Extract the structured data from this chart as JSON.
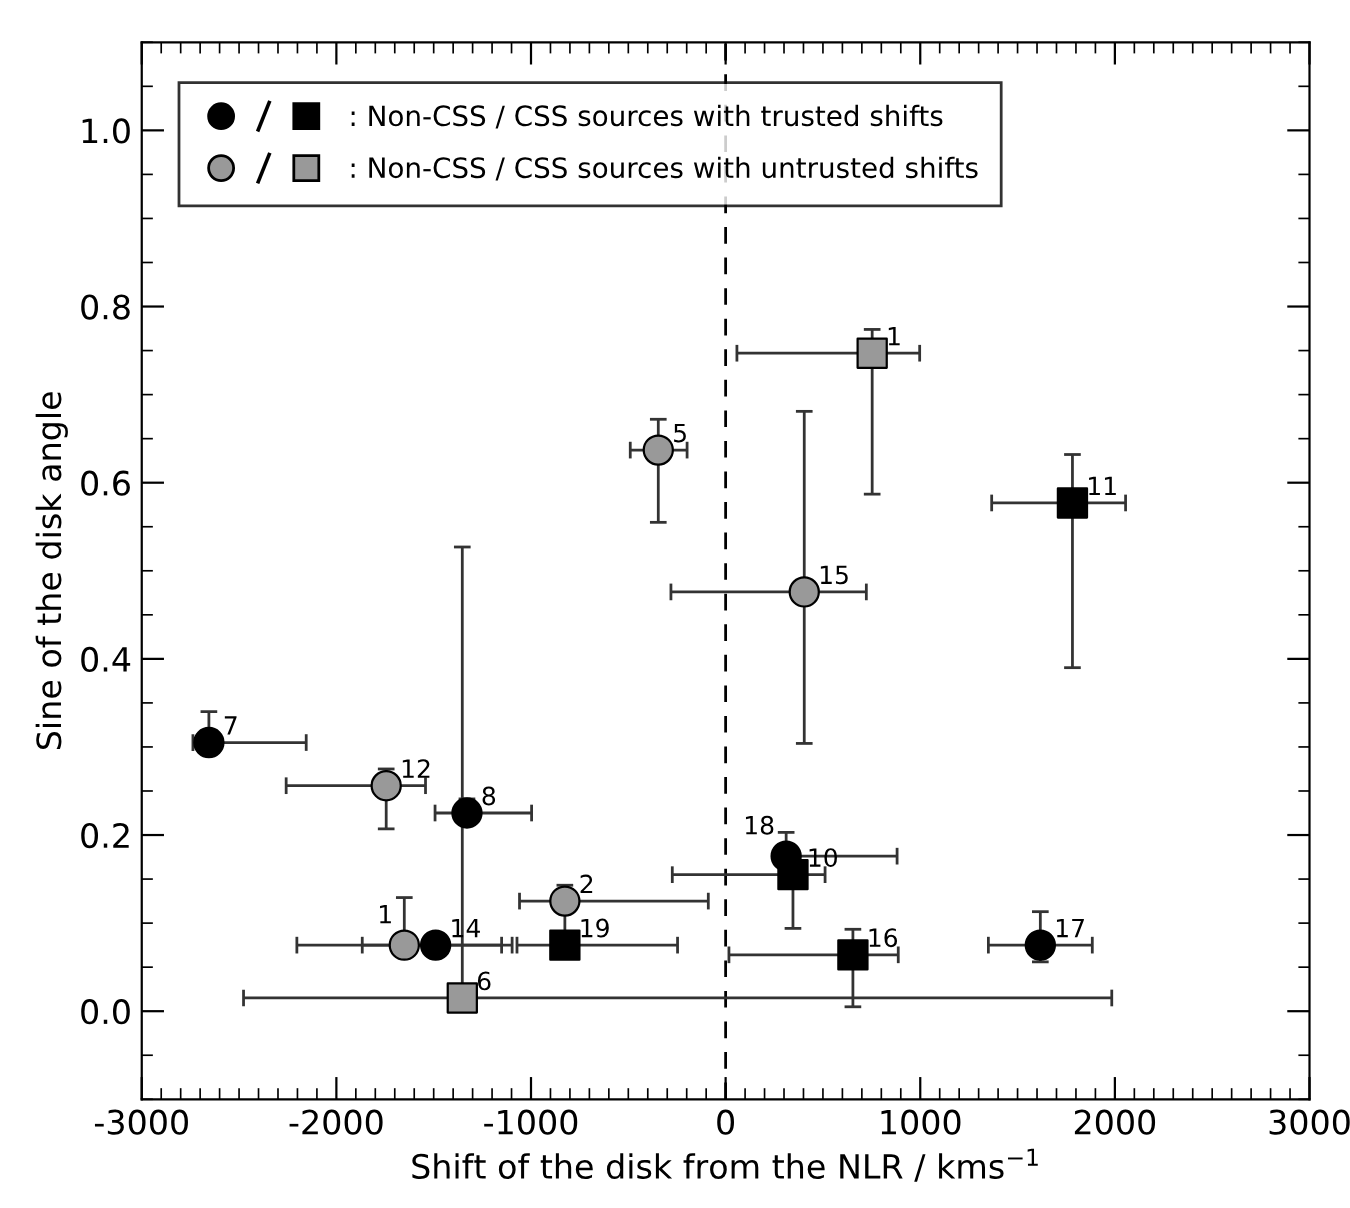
{
  "chart_data": {
    "type": "scatter",
    "xlabel": "Shift of the disk from the NLR / kms$^{−1}$",
    "ylabel": "Sine of the disk angle",
    "xlim": [
      -3000,
      3000
    ],
    "xticks": [
      -3000,
      -2000,
      -1000,
      0,
      1000,
      2000,
      3000
    ],
    "ylim": [
      -0.1,
      1.1
    ],
    "yticks": [
      {
        "value": 0,
        "label": "0.0"
      },
      0.2,
      0.4,
      0.6,
      0.8,
      {
        "value": 1,
        "label": "1.0"
      }
    ],
    "grid": false,
    "legend": "top left",
    "series": [
      {
        "name": ": Non-CSS / CSS sources with trusted shifts",
        "marker": "circle",
        "color": "#000000",
        "x": [
          -2655,
          -1329,
          -1490,
          311,
          1617
        ],
        "values": [
          0.305,
          0.225,
          0.075,
          0.176,
          0.075
        ],
        "xerrors": [
          [
            -2737,
            -2155
          ],
          [
            -1493,
            -997
          ],
          [
            -1867,
            -1097
          ],
          [
            260,
            881
          ],
          [
            1350,
            1884
          ]
        ],
        "errors": [
          [
            0.305,
            0.34
          ],
          [
            0.225,
            0.241
          ],
          null,
          [
            0.176,
            0.203
          ],
          [
            0.056,
            0.113
          ]
        ]
      },
      {
        "marker": "square",
        "color": "#000000",
        "x": [
          1782,
          -826,
          346,
          654
        ],
        "values": [
          0.577,
          0.075,
          0.155,
          0.064
        ],
        "xerrors": [
          [
            1367,
            2055
          ],
          [
            -1072,
            -247
          ],
          [
            -274,
            511
          ],
          [
            17,
            887
          ]
        ],
        "errors": [
          [
            0.39,
            0.632
          ],
          null,
          [
            0.094,
            0.155
          ],
          [
            0.005,
            0.093
          ]
        ]
      },
      {
        "name": ": Non-CSS / CSS sources with untrusted shifts",
        "marker": "circle",
        "color": "#999999",
        "x": [
          -346,
          -1744,
          -1651,
          -826,
          404
        ],
        "values": [
          0.637,
          0.256,
          0.075,
          0.125,
          0.476
        ],
        "xerrors": [
          [
            -490,
            -198
          ],
          [
            -2258,
            -1542
          ],
          [
            -2203,
            -1151
          ],
          [
            -1059,
            -89
          ],
          [
            -281,
            723
          ]
        ],
        "errors": [
          [
            0.555,
            0.672
          ],
          [
            0.207,
            0.275
          ],
          [
            0.065,
            0.129
          ],
          [
            0.09,
            0.143
          ],
          [
            0.304,
            0.681
          ]
        ]
      },
      {
        "marker": "square",
        "color": "#999999",
        "x": [
          753,
          -1353
        ],
        "values": [
          0.747,
          0.015
        ],
        "xerrors": [
          [
            58,
            997
          ],
          [
            -2477,
            1984
          ]
        ],
        "errors": [
          [
            0.587,
            0.774
          ],
          [
            0,
            0.527
          ]
        ]
      }
    ],
    "ref_lines": [
      {
        "axis": "x",
        "value": 0,
        "line_style": "dashed",
        "color": "#000000"
      }
    ],
    "annotations": [
      {
        "text": "7",
        "x": -2655,
        "y": 0.305
      },
      {
        "text": "8",
        "x": -1329,
        "y": 0.225
      },
      {
        "text": "14",
        "x": -1490,
        "y": 0.075
      },
      {
        "text": "18",
        "x": 311,
        "y": 0.176
      },
      {
        "text": "17",
        "x": 1617,
        "y": 0.075
      },
      {
        "text": "11",
        "x": 1782,
        "y": 0.577
      },
      {
        "text": "19",
        "x": -826,
        "y": 0.075
      },
      {
        "text": "10",
        "x": 346,
        "y": 0.155
      },
      {
        "text": "16",
        "x": 654,
        "y": 0.064
      },
      {
        "text": "5",
        "x": -346,
        "y": 0.637
      },
      {
        "text": "12",
        "x": -1744,
        "y": 0.256
      },
      {
        "text": "1",
        "x": -1651,
        "y": 0.075
      },
      {
        "text": "2",
        "x": -826,
        "y": 0.125
      },
      {
        "text": "15",
        "x": 404,
        "y": 0.476
      },
      {
        "text": "1",
        "x": 753,
        "y": 0.747
      },
      {
        "text": "6",
        "x": -1353,
        "y": 0.015
      }
    ]
  }
}
